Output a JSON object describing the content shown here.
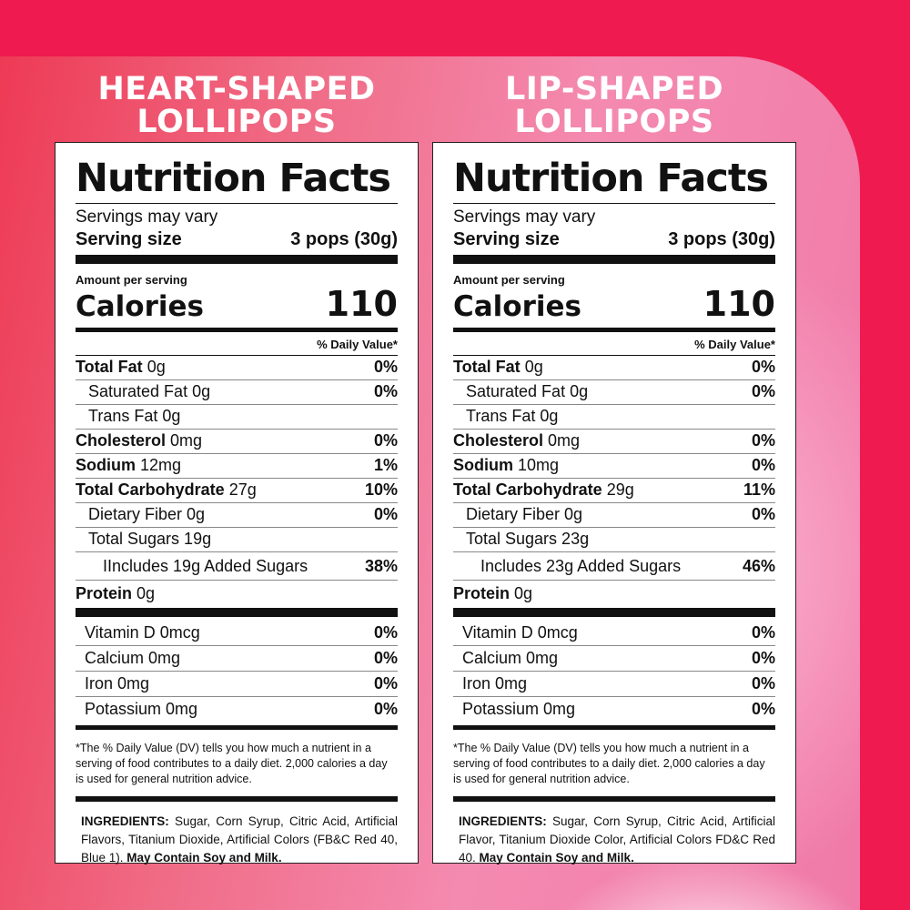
{
  "columns": [
    {
      "title_line1": "HEART-SHAPED",
      "title_line2": "LOLLIPOPS",
      "label": {
        "heading": "Nutrition Facts",
        "servings": "Servings may vary",
        "serving_size_label": "Serving size",
        "serving_size_value": "3 pops (30g)",
        "amount_per_serving": "Amount per serving",
        "calories_label": "Calories",
        "calories_value": "110",
        "dv_header": "% Daily Value*",
        "nutrients": [
          {
            "name": "Total Fat",
            "amount": "0g",
            "pct": "0%"
          },
          {
            "name": "Saturated Fat 0g",
            "amount": "",
            "pct": "0%"
          },
          {
            "name": "Trans Fat 0g",
            "amount": "",
            "pct": ""
          },
          {
            "name": "Cholesterol",
            "amount": "0mg",
            "pct": "0%"
          },
          {
            "name": "Sodium",
            "amount": "12mg",
            "pct": "1%"
          },
          {
            "name": "Total Carbohydrate",
            "amount": "27g",
            "pct": "10%"
          },
          {
            "name": "Dietary Fiber 0g",
            "amount": "",
            "pct": "0%"
          },
          {
            "name": "Total Sugars 19g",
            "amount": "",
            "pct": ""
          },
          {
            "name": "IIncludes 19g Added Sugars",
            "amount": "",
            "pct": "38%"
          }
        ],
        "protein_label": "Protein",
        "protein_amount": "0g",
        "vitamins": [
          {
            "name": "Vitamin D 0mcg",
            "pct": "0%"
          },
          {
            "name": "Calcium 0mg",
            "pct": "0%"
          },
          {
            "name": "Iron 0mg",
            "pct": "0%"
          },
          {
            "name": "Potassium 0mg",
            "pct": "0%"
          }
        ],
        "footnote": "*The % Daily Value (DV) tells you how much a nutrient in a serving of food contributes to a daily diet. 2,000 calories a day is used for general nutrition advice.",
        "ingredients_label": "INGREDIENTS:",
        "ingredients_text": "Sugar, Corn Syrup, Citric Acid, Artificial Flavors, Titanium Dioxide, Artificial Colors (FB&C Red 40, Blue 1).",
        "allergen": "May Contain Soy and Milk."
      }
    },
    {
      "title_line1": "LIP-SHAPED",
      "title_line2": "LOLLIPOPS",
      "label": {
        "heading": "Nutrition Facts",
        "servings": "Servings may vary",
        "serving_size_label": "Serving size",
        "serving_size_value": "3 pops (30g)",
        "amount_per_serving": "Amount per serving",
        "calories_label": "Calories",
        "calories_value": "110",
        "dv_header": "% Daily Value*",
        "nutrients": [
          {
            "name": "Total Fat",
            "amount": "0g",
            "pct": "0%"
          },
          {
            "name": "Saturated Fat 0g",
            "amount": "",
            "pct": "0%"
          },
          {
            "name": "Trans Fat 0g",
            "amount": "",
            "pct": ""
          },
          {
            "name": "Cholesterol",
            "amount": "0mg",
            "pct": "0%"
          },
          {
            "name": "Sodium",
            "amount": "10mg",
            "pct": "0%"
          },
          {
            "name": "Total Carbohydrate",
            "amount": "29g",
            "pct": "11%"
          },
          {
            "name": "Dietary Fiber 0g",
            "amount": "",
            "pct": "0%"
          },
          {
            "name": "Total Sugars 23g",
            "amount": "",
            "pct": ""
          },
          {
            "name": "Includes 23g Added Sugars",
            "amount": "",
            "pct": "46%"
          }
        ],
        "protein_label": "Protein",
        "protein_amount": "0g",
        "vitamins": [
          {
            "name": "Vitamin D 0mcg",
            "pct": "0%"
          },
          {
            "name": "Calcium 0mg",
            "pct": "0%"
          },
          {
            "name": "Iron 0mg",
            "pct": "0%"
          },
          {
            "name": "Potassium 0mg",
            "pct": "0%"
          }
        ],
        "footnote": "*The % Daily Value (DV) tells you how much a nutrient in a serving of food contributes to a daily diet. 2,000 calories a day is used for general nutrition advice.",
        "ingredients_label": "INGREDIENTS:",
        "ingredients_text": "Sugar, Corn Syrup, Citric Acid, Artificial Flavor, Titanium Dioxide Color, Artificial Colors FD&C Red 40.",
        "allergen": "May Contain Soy and Milk."
      }
    }
  ],
  "colors": {
    "background": "#ef1a4f",
    "label_bg": "#ffffff",
    "ink": "#111111"
  }
}
